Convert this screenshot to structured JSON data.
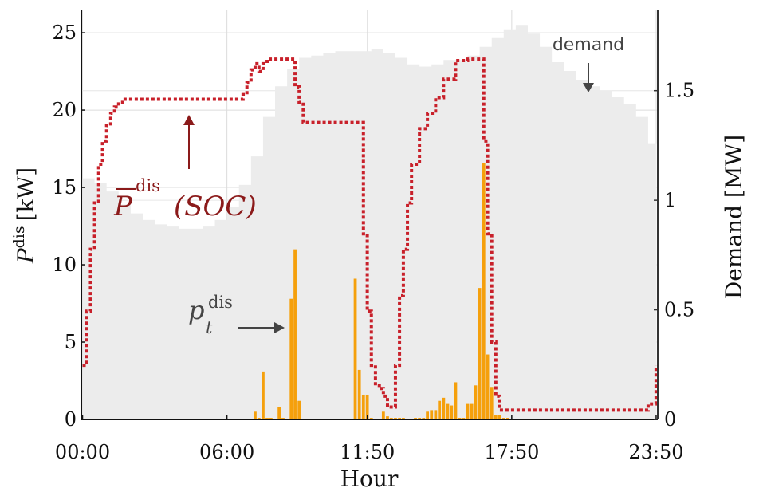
{
  "chart_data": {
    "type": "bar",
    "xlabel": "Hour",
    "ylabel_left": {
      "base": "P",
      "sup": "dis",
      "unit": "[kW]"
    },
    "ylabel_right": "Demand [MW]",
    "x_tick_labels": [
      "00:00",
      "06:00",
      "11:50",
      "17:50",
      "23:50"
    ],
    "x_tick_hours": [
      0,
      6,
      11.833,
      17.833,
      23.833
    ],
    "x_range_hours": [
      -0.05,
      23.9
    ],
    "y_left_ticks": [
      0,
      5,
      10,
      15,
      20,
      25
    ],
    "y_left_range": [
      0,
      26.5
    ],
    "y_right_ticks": [
      0,
      0.5,
      1,
      1.5
    ],
    "y_right_tick_labels": [
      "0",
      "0.5",
      "1",
      "1.5"
    ],
    "y_right_range": [
      0,
      1.87
    ],
    "grid": true,
    "series": [
      {
        "name": "demand",
        "kind": "area",
        "axis": "right",
        "color": "#ececec",
        "x": [
          0,
          0.5,
          1,
          1.5,
          2,
          2.5,
          3,
          3.5,
          4,
          4.5,
          5,
          5.5,
          6,
          6.5,
          7,
          7.5,
          8,
          8.5,
          9,
          9.5,
          10,
          10.5,
          11,
          11.5,
          12,
          12.5,
          13,
          13.5,
          14,
          14.5,
          15,
          15.5,
          16,
          16.5,
          17,
          17.5,
          18,
          18.5,
          19,
          19.5,
          20,
          20.5,
          21,
          21.5,
          22,
          22.5,
          23,
          23.5,
          23.85
        ],
        "values": [
          1.1,
          1.08,
          1.04,
          0.98,
          0.94,
          0.91,
          0.89,
          0.88,
          0.87,
          0.87,
          0.88,
          0.91,
          0.97,
          1.07,
          1.2,
          1.38,
          1.52,
          1.6,
          1.65,
          1.66,
          1.67,
          1.68,
          1.68,
          1.68,
          1.69,
          1.67,
          1.65,
          1.62,
          1.61,
          1.62,
          1.64,
          1.64,
          1.66,
          1.7,
          1.74,
          1.78,
          1.8,
          1.76,
          1.7,
          1.63,
          1.59,
          1.55,
          1.52,
          1.5,
          1.47,
          1.44,
          1.38,
          1.26,
          1.12
        ]
      },
      {
        "name": "P̄dis(SOC)",
        "kind": "step-line",
        "axis": "left",
        "color": "#c8202a",
        "x": [
          0,
          0.17,
          0.33,
          0.5,
          0.67,
          0.83,
          1,
          1.17,
          1.33,
          1.5,
          1.67,
          2,
          3,
          4,
          5,
          6,
          6.5,
          6.67,
          6.83,
          7,
          7.17,
          7.33,
          7.5,
          7.67,
          7.83,
          8.67,
          8.83,
          9,
          9.17,
          10,
          11,
          11.5,
          11.67,
          11.83,
          12,
          12.17,
          12.33,
          12.5,
          12.67,
          12.83,
          13,
          13.17,
          13.33,
          13.5,
          13.67,
          14,
          14.33,
          14.67,
          15,
          15.5,
          16,
          16.33,
          16.5,
          16.67,
          16.83,
          17,
          17.17,
          17.33,
          17.5,
          18,
          19,
          20,
          21,
          22,
          23,
          23.5,
          23.83
        ],
        "values": [
          3.5,
          7,
          11,
          14,
          16.5,
          18,
          19,
          19.8,
          20.2,
          20.5,
          20.7,
          20.7,
          20.7,
          20.7,
          20.7,
          20.7,
          20.7,
          21,
          21.8,
          22.6,
          23,
          22.5,
          23,
          23.3,
          23.3,
          23.3,
          21.5,
          20.5,
          19.2,
          19.2,
          19.2,
          19.2,
          12,
          7,
          3.5,
          2.2,
          2,
          1.5,
          0.8,
          0.8,
          3.5,
          8,
          11,
          14,
          16.5,
          18.8,
          19.8,
          20.8,
          22,
          23.2,
          23.3,
          23.3,
          23.3,
          18,
          12,
          5,
          1.5,
          0.6,
          0.6,
          0.6,
          0.6,
          0.6,
          0.6,
          0.6,
          0.6,
          1,
          3.5
        ]
      },
      {
        "name": "p_t^dis",
        "kind": "bar",
        "axis": "left",
        "color": "#f5a00c",
        "x": [
          0.17,
          0.33,
          0.5,
          0.67,
          0.83,
          1,
          1.17,
          7.17,
          7.33,
          7.5,
          7.67,
          7.83,
          8.17,
          8.33,
          8.67,
          8.83,
          9,
          11.33,
          11.5,
          11.67,
          11.83,
          12,
          12.17,
          12.5,
          12.67,
          12.83,
          13,
          13.17,
          13.33,
          13.5,
          13.67,
          13.83,
          14,
          14.17,
          14.33,
          14.5,
          14.67,
          14.83,
          15,
          15.17,
          15.33,
          15.5,
          15.67,
          15.83,
          16,
          16.17,
          16.33,
          16.5,
          16.67,
          16.83,
          17,
          17.17,
          17.33,
          17.5,
          17.67
        ],
        "values": [
          0.05,
          0.05,
          0.05,
          0.05,
          0.05,
          0.05,
          0.05,
          0.5,
          0.1,
          3.1,
          0.1,
          0.1,
          0.8,
          0.1,
          7.8,
          11,
          1.2,
          9.1,
          3.2,
          1.6,
          1.6,
          0.1,
          0.05,
          0.5,
          0.2,
          0.1,
          0.1,
          0.1,
          0.1,
          0.05,
          0.05,
          0.1,
          0.1,
          0.1,
          0.5,
          0.6,
          0.6,
          1.2,
          1.4,
          1.0,
          0.9,
          2.4,
          0.1,
          0.1,
          1.0,
          1.0,
          2.2,
          8.5,
          16.6,
          4.2,
          2.1,
          0.3,
          0.3,
          0.1,
          0.1
        ]
      }
    ],
    "annotations": {
      "demand": "demand",
      "pbar_base": "P",
      "pbar_sup": "dis",
      "pbar_soc": "(SOC)",
      "p_base": "p",
      "p_sub": "t",
      "p_sup": "dis"
    }
  }
}
